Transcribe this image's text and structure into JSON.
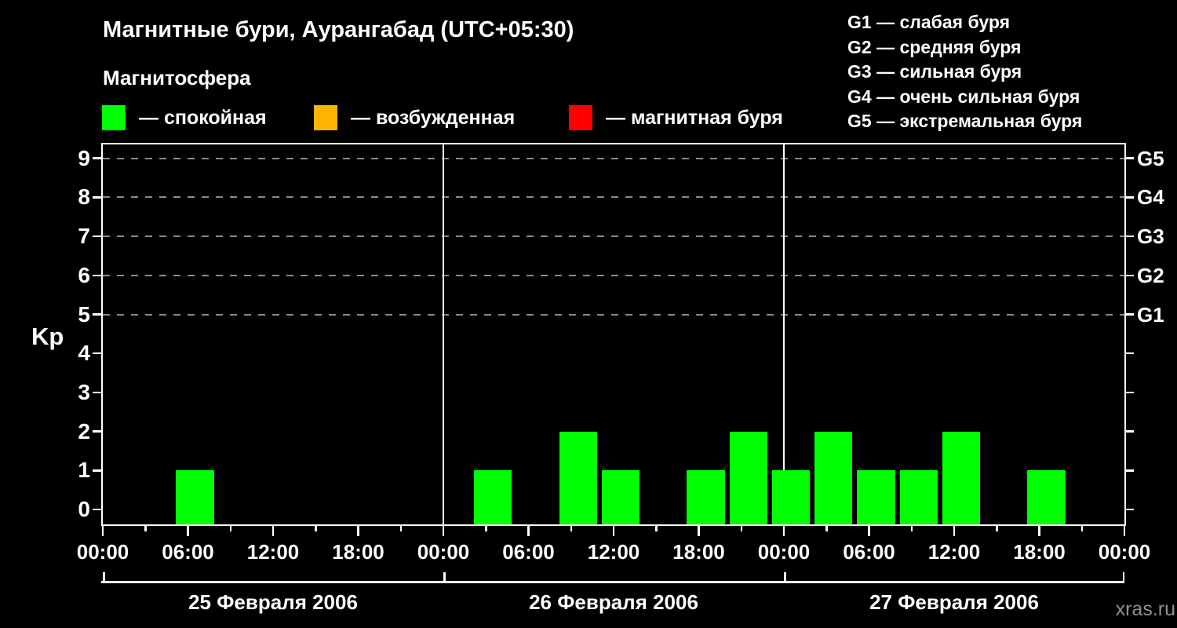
{
  "header": {
    "title": "Магнитные бури, Аурангабад (UTC+05:30)",
    "subtitle": "Магнитосфера",
    "legend": [
      {
        "label": "— спокойная",
        "color": "#00ff00"
      },
      {
        "label": "— возбужденная",
        "color": "#ffb400"
      },
      {
        "label": "— магнитная буря",
        "color": "#ff0000"
      }
    ],
    "g_scale_legend": [
      "G1 — слабая буря",
      "G2 — средняя буря",
      "G3 — сильная буря",
      "G4 — очень сильная буря",
      "G5 — экстремальная буря"
    ]
  },
  "watermark": "xras.ru",
  "chart_data": {
    "type": "bar",
    "title": "Магнитные бури, Аурангабад (UTC+05:30)",
    "ylabel": "Kp",
    "ylim": [
      0,
      9
    ],
    "y_ticks": [
      0,
      1,
      2,
      3,
      4,
      5,
      6,
      7,
      8,
      9
    ],
    "gridlines_at_kp": [
      5,
      6,
      7,
      8,
      9
    ],
    "right_axis_labels": [
      {
        "kp": 5,
        "label": "G1"
      },
      {
        "kp": 6,
        "label": "G2"
      },
      {
        "kp": 7,
        "label": "G3"
      },
      {
        "kp": 8,
        "label": "G4"
      },
      {
        "kp": 9,
        "label": "G5"
      }
    ],
    "x_major_tick_labels": [
      "00:00",
      "06:00",
      "12:00",
      "18:00",
      "00:00",
      "06:00",
      "12:00",
      "18:00",
      "00:00",
      "06:00",
      "12:00",
      "18:00",
      "00:00"
    ],
    "slot_hours": 3,
    "bar_color": "#00ff00",
    "grid_color": "#8a8a8a",
    "days": [
      {
        "label": "25 Февраля 2006",
        "bars": [
          {
            "start_hour": 5,
            "kp": 1
          }
        ]
      },
      {
        "label": "26 Февраля 2006",
        "bars": [
          {
            "start_hour": 2,
            "kp": 1
          },
          {
            "start_hour": 8,
            "kp": 2
          },
          {
            "start_hour": 11,
            "kp": 1
          },
          {
            "start_hour": 17,
            "kp": 1
          },
          {
            "start_hour": 20,
            "kp": 2
          },
          {
            "start_hour": 23,
            "kp": 1
          }
        ]
      },
      {
        "label": "27 Февраля 2006",
        "bars": [
          {
            "start_hour": 2,
            "kp": 2
          },
          {
            "start_hour": 5,
            "kp": 1
          },
          {
            "start_hour": 8,
            "kp": 1
          },
          {
            "start_hour": 11,
            "kp": 2
          },
          {
            "start_hour": 17,
            "kp": 1
          }
        ]
      }
    ]
  }
}
